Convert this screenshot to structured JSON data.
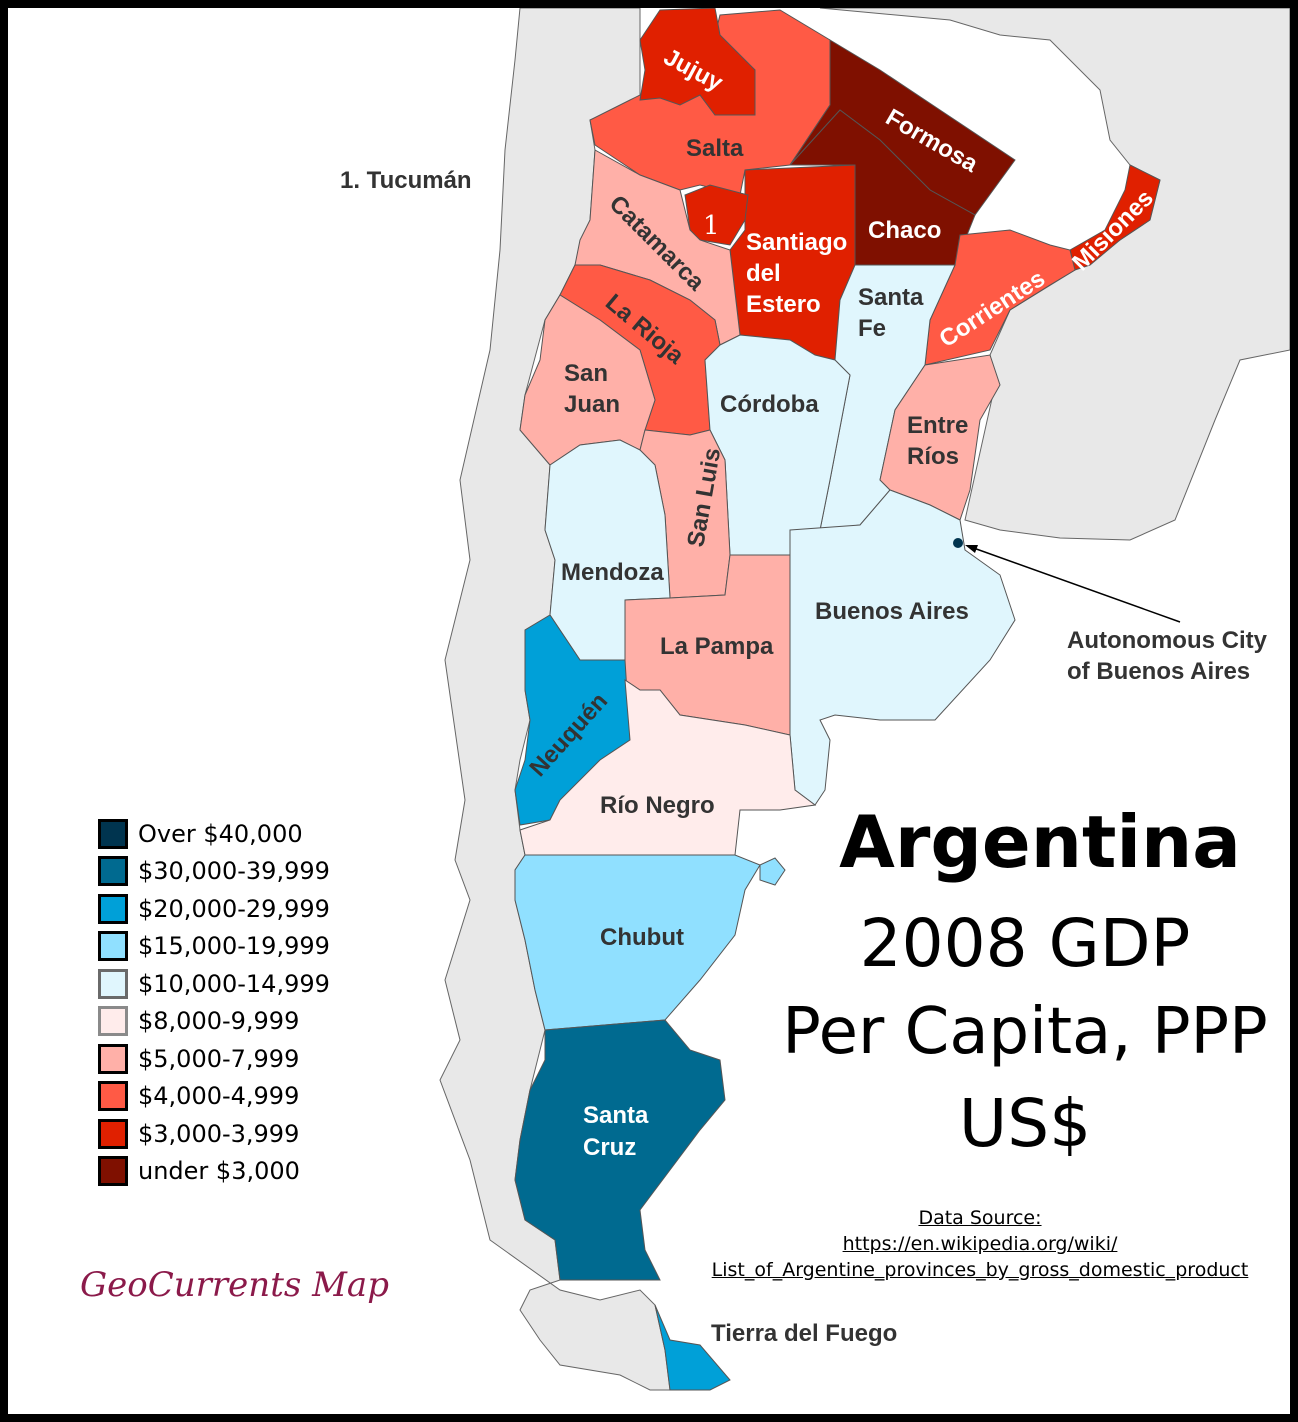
{
  "title": {
    "line1": "Argentina",
    "line2": "2008 GDP",
    "line3": "Per Capita, PPP",
    "line4": "US$"
  },
  "colors": {
    "over_40000": "#00344f",
    "r30000": "#006a90",
    "r20000": "#00a0d8",
    "r15000": "#90e0ff",
    "r10000": "#e0f6fd",
    "r8000": "#ffeceb",
    "r5000": "#ffb0a8",
    "r4000": "#ff5a45",
    "r3000": "#e02000",
    "under_3000": "#7f1000",
    "neighbor": "#e8e8e8"
  },
  "legend": [
    {
      "label": "Over $40,000",
      "color": "#00344f"
    },
    {
      "label": "$30,000-39,999",
      "color": "#006a90"
    },
    {
      "label": "$20,000-29,999",
      "color": "#00a0d8"
    },
    {
      "label": "$15,000-19,999",
      "color": "#90e0ff"
    },
    {
      "label": "$10,000-14,999",
      "color": "#e0f6fd"
    },
    {
      "label": "$8,000-9,999",
      "color": "#ffeceb"
    },
    {
      "label": "$5,000-7,999",
      "color": "#ffb0a8"
    },
    {
      "label": "$4,000-4,999",
      "color": "#ff5a45"
    },
    {
      "label": "$3,000-3,999",
      "color": "#e02000"
    },
    {
      "label": "under $3,000",
      "color": "#7f1000"
    }
  ],
  "provinces": {
    "jujuy": {
      "name": "Jujuy",
      "class": "$3,000-3,999"
    },
    "salta": {
      "name": "Salta",
      "class": "$4,000-4,999"
    },
    "tucuman": {
      "name": "1",
      "class": "$3,000-3,999"
    },
    "formosa": {
      "name": "Formosa",
      "class": "under $3,000"
    },
    "chaco": {
      "name": "Chaco",
      "class": "under $3,000"
    },
    "misiones": {
      "name": "Misiones",
      "class": "$3,000-3,999"
    },
    "santiago": {
      "line1": "Santiago",
      "line2": "del",
      "line3": "Estero",
      "class": "$3,000-3,999"
    },
    "corrientes": {
      "name": "Corrientes",
      "class": "$4,000-4,999"
    },
    "santafe": {
      "line1": "Santa",
      "line2": "Fe",
      "class": "$10,000-14,999"
    },
    "catamarca": {
      "name": "Catamarca",
      "class": "$5,000-7,999"
    },
    "larioja": {
      "name": "La Rioja",
      "class": "$4,000-4,999"
    },
    "sanjuan": {
      "line1": "San",
      "line2": "Juan",
      "class": "$5,000-7,999"
    },
    "cordoba": {
      "name": "Córdoba",
      "class": "$10,000-14,999"
    },
    "entrerios": {
      "line1": "Entre",
      "line2": "Ríos",
      "class": "$5,000-7,999"
    },
    "sanluis": {
      "name": "San Luis",
      "class": "$5,000-7,999"
    },
    "mendoza": {
      "name": "Mendoza",
      "class": "$10,000-14,999"
    },
    "buenosaires": {
      "name": "Buenos Aires",
      "class": "$10,000-14,999"
    },
    "lapampa": {
      "name": "La Pampa",
      "class": "$5,000-7,999"
    },
    "neuquen": {
      "name": "Neuquén",
      "class": "$20,000-29,999"
    },
    "rionegro": {
      "name": "Río Negro",
      "class": "$8,000-9,999"
    },
    "chubut": {
      "name": "Chubut",
      "class": "$15,000-19,999"
    },
    "santacruz": {
      "line1": "Santa",
      "line2": "Cruz",
      "class": "$30,000-39,999"
    },
    "tierradelfuego": {
      "name": "Tierra del Fuego",
      "class": "$20,000-29,999"
    },
    "caba": {
      "line1": "Autonomous City",
      "line2": "of Buenos Aires",
      "class": "Over $40,000"
    }
  },
  "key_note": "1. Tucumán",
  "source": {
    "heading": "Data Source:",
    "line1": "https://en.wikipedia.org/wiki/",
    "line2": "List_of_Argentine_provinces_by_gross_domestic_product"
  },
  "brand": "GeoCurrents Map"
}
